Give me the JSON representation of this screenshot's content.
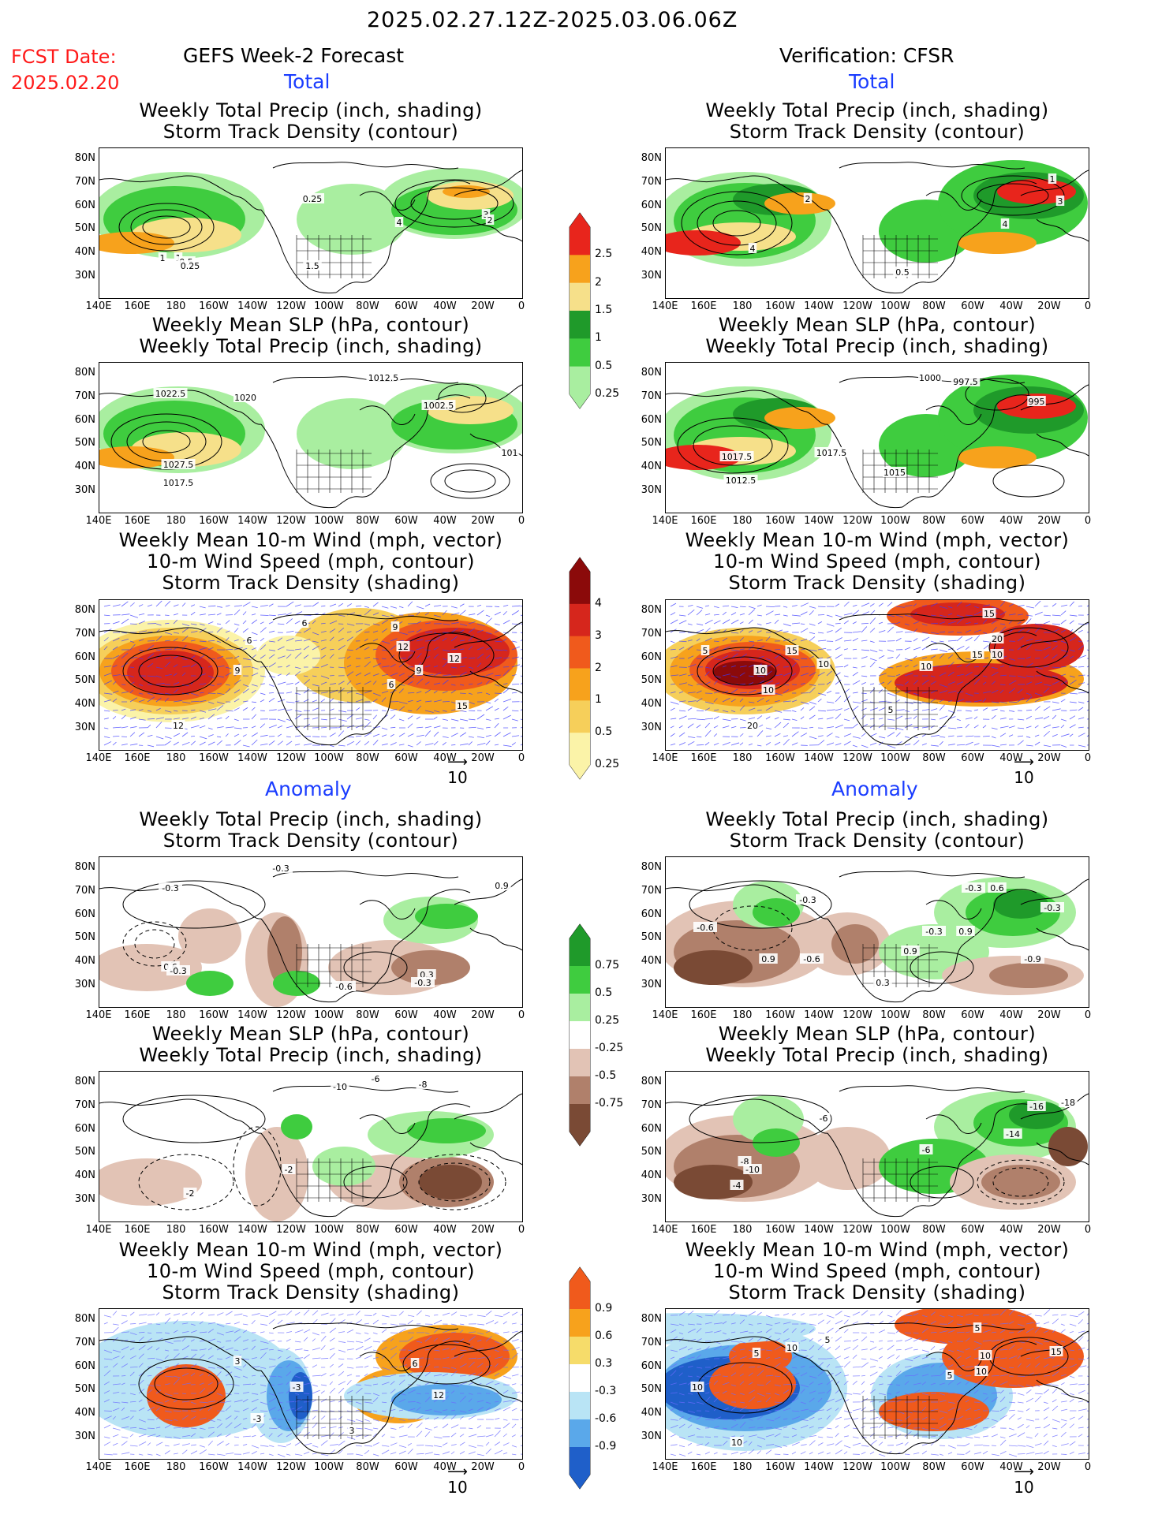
{
  "header": {
    "period": "2025.02.27.12Z-2025.03.06.06Z",
    "fcst_label": "FCST Date:",
    "fcst_date": "2025.02.20",
    "left_title": "GEFS Week-2 Forecast",
    "right_title": "Verification: CFSR"
  },
  "sections": {
    "total": "Total",
    "anomaly": "Anomaly"
  },
  "panel_titles": {
    "precip_storm": [
      "Weekly Total Precip (inch, shading)",
      "Storm Track Density (contour)"
    ],
    "slp_precip": [
      "Weekly Mean SLP (hPa, contour)",
      "Weekly Total Precip (inch, shading)"
    ],
    "wind_storm": [
      "Weekly Mean 10-m Wind (mph, vector)",
      "10-m Wind Speed (mph, contour)",
      "Storm Track Density (shading)"
    ]
  },
  "axes": {
    "lat_labels": [
      "80N",
      "70N",
      "60N",
      "50N",
      "40N",
      "30N"
    ],
    "lon_labels": [
      "140E",
      "160E",
      "180",
      "160W",
      "140W",
      "120W",
      "100W",
      "80W",
      "60W",
      "40W",
      "20W",
      "0"
    ]
  },
  "vector_ref": "10",
  "colorbars": {
    "precip_total": {
      "labels": [
        "2.5",
        "2",
        "1.5",
        "1",
        "0.5",
        "0.25"
      ],
      "colors": [
        "#e8251c",
        "#f7a21c",
        "#f6e08a",
        "#1f9a2a",
        "#3fcc3f",
        "#a9eea0"
      ]
    },
    "storm_total": {
      "labels": [
        "4",
        "3",
        "2",
        "1",
        "0.5",
        "0.25"
      ],
      "colors": [
        "#8b0a0a",
        "#d6261c",
        "#f05a1c",
        "#f7a21c",
        "#f6cf5a",
        "#fbf3a8"
      ]
    },
    "precip_anom": {
      "labels": [
        "0.75",
        "0.5",
        "0.25",
        "-0.25",
        "-0.5",
        "-0.75"
      ],
      "colors": [
        "#1f9a2a",
        "#3fcc3f",
        "#a9eea0",
        "#ffffff",
        "#e2c3b5",
        "#b0806b",
        "#7a4a35"
      ]
    },
    "storm_anom": {
      "labels": [
        "0.9",
        "0.6",
        "0.3",
        "-0.3",
        "-0.6",
        "-0.9"
      ],
      "colors": [
        "#f05a1c",
        "#f7a21c",
        "#f6dc6a",
        "#ffffff",
        "#b9e4f5",
        "#5aa8ea",
        "#1f5fc9"
      ]
    }
  },
  "contour_labels": {
    "p1L": [
      "0.25",
      "1",
      "4",
      "3",
      "2",
      "1",
      "0.5",
      "0.25",
      "1.5"
    ],
    "p1R": [
      "2",
      "1",
      "3",
      "4",
      "4",
      "0.5"
    ],
    "p2L": [
      "1022.5",
      "1020",
      "1012.5",
      "1002.5",
      "1027.5",
      "1017.5",
      "101"
    ],
    "p2R": [
      "1000",
      "997.5",
      "1017.5",
      "995",
      "1017.5",
      "1015",
      "1012.5"
    ],
    "p3L": [
      "6",
      "9",
      "6",
      "12",
      "12",
      "9",
      "6",
      "9",
      "15",
      "12"
    ],
    "p3R": [
      "15",
      "5",
      "15",
      "10",
      "10",
      "10",
      "20",
      "10",
      "15",
      "5",
      "10",
      "20"
    ],
    "p4L": [
      "-0.3",
      "-0.3",
      "0.9",
      "0.6",
      "0.3",
      "-0.3",
      "-0.6",
      "-0.3"
    ],
    "p4R": [
      "-0.3",
      "-0.6",
      "0.9",
      "-0.3",
      "0.9",
      "-0.6",
      "-0.3",
      "-0.9",
      "0.3",
      "0.6",
      "-0.3",
      "0.9"
    ],
    "p5L": [
      "-6",
      "-8",
      "-10",
      "-2",
      "-2"
    ],
    "p5R": [
      "-6",
      "-16",
      "-18",
      "-14",
      "-6",
      "-8",
      "-10",
      "-4"
    ],
    "p6L": [
      "3",
      "6",
      "12",
      "3",
      "-3",
      "-3"
    ],
    "p6R": [
      "5",
      "10",
      "5",
      "5",
      "10",
      "15",
      "10",
      "5",
      "10",
      "10"
    ]
  }
}
